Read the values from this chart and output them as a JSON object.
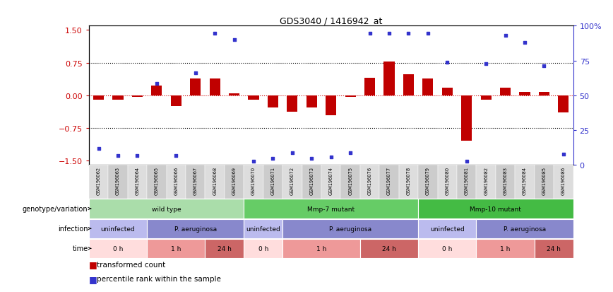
{
  "title": "GDS3040 / 1416942_at",
  "samples": [
    "GSM196062",
    "GSM196063",
    "GSM196064",
    "GSM196065",
    "GSM196066",
    "GSM196067",
    "GSM196068",
    "GSM196069",
    "GSM196070",
    "GSM196071",
    "GSM196072",
    "GSM196073",
    "GSM196074",
    "GSM196075",
    "GSM196076",
    "GSM196077",
    "GSM196078",
    "GSM196079",
    "GSM196080",
    "GSM196081",
    "GSM196082",
    "GSM196083",
    "GSM196084",
    "GSM196085",
    "GSM196086"
  ],
  "bar_values": [
    -0.1,
    -0.1,
    -0.04,
    0.22,
    -0.25,
    0.38,
    0.38,
    0.04,
    -0.1,
    -0.28,
    -0.38,
    -0.28,
    -0.45,
    -0.04,
    0.4,
    0.78,
    0.48,
    0.38,
    0.18,
    -1.05,
    -0.1,
    0.18,
    0.08,
    0.08,
    -0.4
  ],
  "dot_values": [
    -1.22,
    -1.38,
    -1.38,
    0.28,
    -1.38,
    0.52,
    1.42,
    1.28,
    -1.52,
    -1.45,
    -1.32,
    -1.45,
    -1.42,
    -1.32,
    1.42,
    1.42,
    1.42,
    1.42,
    0.76,
    -1.52,
    0.72,
    1.38,
    1.22,
    0.68,
    -1.35
  ],
  "ylim": [
    -1.6,
    1.6
  ],
  "yticks_left": [
    -1.5,
    -0.75,
    0.0,
    0.75,
    1.5
  ],
  "yticks_right_vals": [
    0,
    25,
    50,
    75,
    100
  ],
  "yticks_right_labels": [
    "0",
    "25",
    "50",
    "75",
    "100%"
  ],
  "hlines": [
    -0.75,
    0.0,
    0.75
  ],
  "bar_color": "#C00000",
  "dot_color": "#3333CC",
  "bar_width": 0.55,
  "genotype_groups": [
    {
      "label": "wild type",
      "start": 0,
      "end": 8,
      "color": "#AADDAA"
    },
    {
      "label": "Mmp-7 mutant",
      "start": 8,
      "end": 17,
      "color": "#66CC66"
    },
    {
      "label": "Mmp-10 mutant",
      "start": 17,
      "end": 25,
      "color": "#44BB44"
    }
  ],
  "infection_groups": [
    {
      "label": "uninfected",
      "start": 0,
      "end": 3,
      "color": "#BBBBEE"
    },
    {
      "label": "P. aeruginosa",
      "start": 3,
      "end": 8,
      "color": "#8888CC"
    },
    {
      "label": "uninfected",
      "start": 8,
      "end": 10,
      "color": "#BBBBEE"
    },
    {
      "label": "P. aeruginosa",
      "start": 10,
      "end": 17,
      "color": "#8888CC"
    },
    {
      "label": "uninfected",
      "start": 17,
      "end": 20,
      "color": "#BBBBEE"
    },
    {
      "label": "P. aeruginosa",
      "start": 20,
      "end": 25,
      "color": "#8888CC"
    }
  ],
  "time_groups": [
    {
      "label": "0 h",
      "start": 0,
      "end": 3,
      "color": "#FFDDDD"
    },
    {
      "label": "1 h",
      "start": 3,
      "end": 6,
      "color": "#EE9999"
    },
    {
      "label": "24 h",
      "start": 6,
      "end": 8,
      "color": "#CC6666"
    },
    {
      "label": "0 h",
      "start": 8,
      "end": 10,
      "color": "#FFDDDD"
    },
    {
      "label": "1 h",
      "start": 10,
      "end": 14,
      "color": "#EE9999"
    },
    {
      "label": "24 h",
      "start": 14,
      "end": 17,
      "color": "#CC6666"
    },
    {
      "label": "0 h",
      "start": 17,
      "end": 20,
      "color": "#FFDDDD"
    },
    {
      "label": "1 h",
      "start": 20,
      "end": 23,
      "color": "#EE9999"
    },
    {
      "label": "24 h",
      "start": 23,
      "end": 25,
      "color": "#CC6666"
    }
  ],
  "row_labels": [
    "genotype/variation",
    "infection",
    "time"
  ],
  "legend_bar_label": "transformed count",
  "legend_dot_label": "percentile rank within the sample",
  "tick_bg_color": "#DDDDDD",
  "tick_bg_alt_color": "#CCCCCC"
}
